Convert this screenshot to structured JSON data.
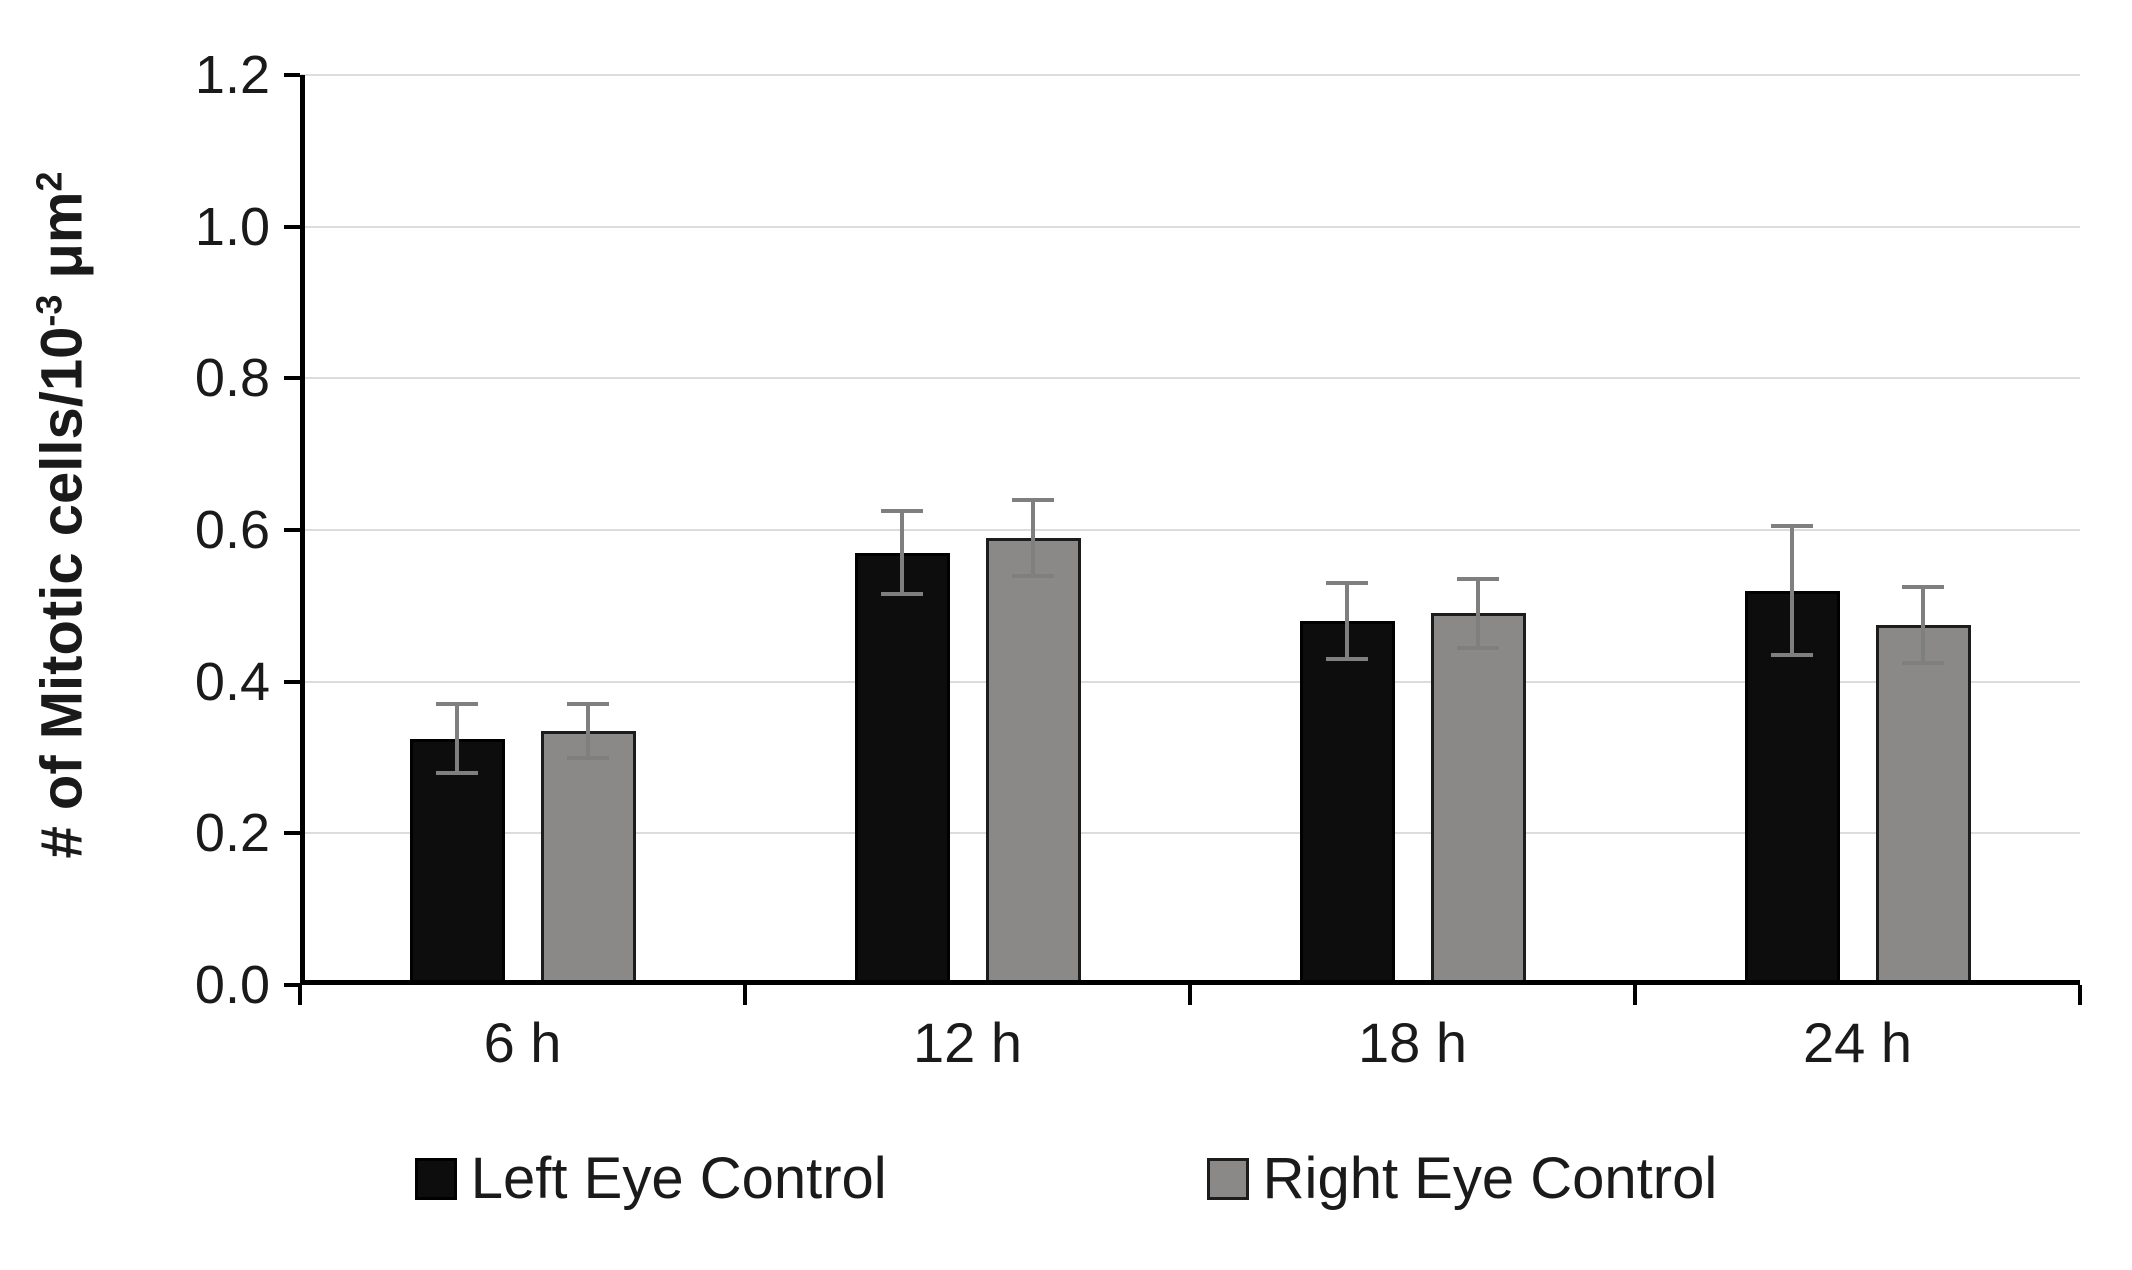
{
  "chart_data": {
    "type": "bar",
    "title": "",
    "xlabel": "",
    "ylabel": "# of Mitotic cells/10⁻³ μm²",
    "ylabel_parts": {
      "main": "# of Mitotic cells/10",
      "sup1": "-3",
      "mid": " μm",
      "sup2": "2"
    },
    "categories": [
      "6 h",
      "12 h",
      "18 h",
      "24 h"
    ],
    "series": [
      {
        "name": "Left Eye Control",
        "color": "#0d0d0d",
        "border": "#000000",
        "values": [
          0.325,
          0.57,
          0.48,
          0.52
        ],
        "errors": [
          0.045,
          0.055,
          0.05,
          0.085
        ]
      },
      {
        "name": "Right Eye Control",
        "color": "#8b8988",
        "border": "#1c1c1c",
        "values": [
          0.335,
          0.59,
          0.49,
          0.475
        ],
        "errors": [
          0.035,
          0.05,
          0.045,
          0.05
        ]
      }
    ],
    "ylim": [
      0,
      1.2
    ],
    "yticks": [
      0,
      0.2,
      0.4,
      0.6,
      0.8,
      1.0,
      1.2
    ],
    "ytick_decimals": 1,
    "grid": "horizontal",
    "legend_position": "bottom",
    "gridline_color": "#dcdcdc",
    "error_bar_color": "#7f7f7f"
  }
}
